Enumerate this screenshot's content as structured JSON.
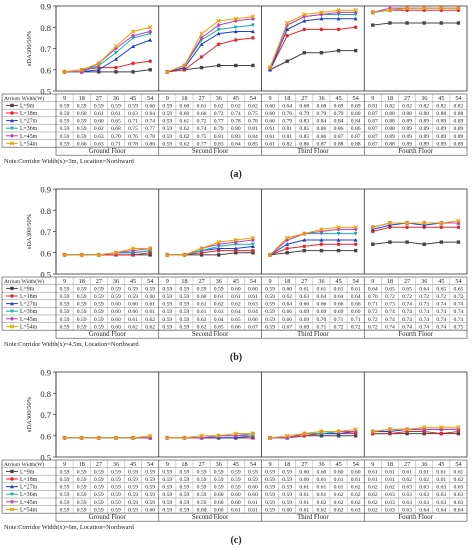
{
  "chart_data": [
    {
      "type": "line",
      "panel_label": "(a)",
      "note": "Note:Corridor Width(x)=3m, Location=Northward",
      "ylabel": "sDA300/50%",
      "ylim": [
        0.5,
        0.9
      ],
      "yticks": [
        "0.5",
        "0.6",
        "0.7",
        "0.8",
        "0.9"
      ],
      "table_header": "Atrium Width(W)",
      "floors": [
        "Ground Floor",
        "Second Floor",
        "Third Floor",
        "Fourth Floor"
      ],
      "x": [
        "9",
        "18",
        "27",
        "36",
        "45",
        "54"
      ],
      "series": [
        {
          "name": "L=9m",
          "color": "#444444",
          "marker": "square",
          "values": [
            [
              0.59,
              0.59,
              0.59,
              0.59,
              0.59,
              0.6
            ],
            [
              0.59,
              0.6,
              0.61,
              0.62,
              0.62,
              0.62
            ],
            [
              0.6,
              0.64,
              0.68,
              0.68,
              0.69,
              0.69
            ],
            [
              0.81,
              0.82,
              0.82,
              0.82,
              0.82,
              0.82
            ]
          ]
        },
        {
          "name": "L=18m",
          "color": "#e8232b",
          "marker": "circle",
          "values": [
            [
              0.59,
              0.6,
              0.61,
              0.61,
              0.63,
              0.64
            ],
            [
              0.59,
              0.6,
              0.66,
              0.72,
              0.74,
              0.75
            ],
            [
              0.6,
              0.76,
              0.79,
              0.79,
              0.79,
              0.8
            ],
            [
              0.87,
              0.88,
              0.88,
              0.88,
              0.88,
              0.88
            ]
          ]
        },
        {
          "name": "L=27m",
          "color": "#2040c8",
          "marker": "triangle",
          "values": [
            [
              0.59,
              0.59,
              0.6,
              0.65,
              0.71,
              0.74
            ],
            [
              0.59,
              0.61,
              0.72,
              0.77,
              0.78,
              0.78
            ],
            [
              0.6,
              0.79,
              0.83,
              0.84,
              0.84,
              0.84
            ],
            [
              0.87,
              0.88,
              0.89,
              0.89,
              0.89,
              0.89
            ]
          ]
        },
        {
          "name": "L=36m",
          "color": "#16b0b0",
          "marker": "tridown",
          "values": [
            [
              0.59,
              0.59,
              0.62,
              0.68,
              0.75,
              0.77
            ],
            [
              0.59,
              0.62,
              0.74,
              0.79,
              0.8,
              0.81
            ],
            [
              0.61,
              0.81,
              0.85,
              0.86,
              0.86,
              0.86
            ],
            [
              0.87,
              0.88,
              0.89,
              0.89,
              0.89,
              0.89
            ]
          ]
        },
        {
          "name": "L=45m",
          "color": "#c43cb8",
          "marker": "diamond",
          "values": [
            [
              0.59,
              0.59,
              0.63,
              0.7,
              0.76,
              0.78
            ],
            [
              0.59,
              0.62,
              0.75,
              0.81,
              0.83,
              0.84
            ],
            [
              0.61,
              0.81,
              0.85,
              0.86,
              0.87,
              0.87
            ],
            [
              0.87,
              0.89,
              0.89,
              0.89,
              0.89,
              0.89
            ]
          ]
        },
        {
          "name": "L=54m",
          "color": "#e8a30a",
          "marker": "cross",
          "values": [
            [
              0.59,
              0.6,
              0.63,
              0.71,
              0.78,
              0.8
            ],
            [
              0.59,
              0.62,
              0.77,
              0.83,
              0.84,
              0.85
            ],
            [
              0.61,
              0.82,
              0.86,
              0.87,
              0.88,
              0.88
            ],
            [
              0.87,
              0.88,
              0.89,
              0.89,
              0.89,
              0.89
            ]
          ]
        }
      ]
    },
    {
      "type": "line",
      "panel_label": "(b)",
      "note": "Note:Corridor Width(x)=4.5m, Location=Northward",
      "ylabel": "sDA300/50%",
      "ylim": [
        0.5,
        0.9
      ],
      "yticks": [
        "0.5",
        "0.6",
        "0.7",
        "0.8",
        "0.9"
      ],
      "table_header": "Atrium Width(W)",
      "floors": [
        "Ground Floor",
        "Second Floor",
        "Third Floor",
        "Fourth Floor"
      ],
      "x": [
        "9",
        "18",
        "27",
        "36",
        "45",
        "54"
      ],
      "series": [
        {
          "name": "L=9m",
          "color": "#444444",
          "marker": "square",
          "values": [
            [
              0.59,
              0.59,
              0.59,
              0.59,
              0.59,
              0.59
            ],
            [
              0.59,
              0.59,
              0.59,
              0.59,
              0.6,
              0.6
            ],
            [
              0.59,
              0.6,
              0.61,
              0.61,
              0.61,
              0.61
            ],
            [
              0.64,
              0.65,
              0.65,
              0.64,
              0.65,
              0.65
            ]
          ]
        },
        {
          "name": "L=18m",
          "color": "#e8232b",
          "marker": "circle",
          "values": [
            [
              0.59,
              0.59,
              0.59,
              0.59,
              0.59,
              0.6
            ],
            [
              0.59,
              0.59,
              0.6,
              0.61,
              0.61,
              0.61
            ],
            [
              0.59,
              0.62,
              0.63,
              0.64,
              0.64,
              0.64
            ],
            [
              0.7,
              0.72,
              0.72,
              0.72,
              0.72,
              0.72
            ]
          ]
        },
        {
          "name": "L=27m",
          "color": "#2040c8",
          "marker": "triangle",
          "values": [
            [
              0.59,
              0.59,
              0.59,
              0.6,
              0.6,
              0.61
            ],
            [
              0.59,
              0.59,
              0.61,
              0.62,
              0.62,
              0.63
            ],
            [
              0.59,
              0.64,
              0.66,
              0.66,
              0.66,
              0.66
            ],
            [
              0.71,
              0.73,
              0.74,
              0.73,
              0.74,
              0.74
            ]
          ]
        },
        {
          "name": "L=36m",
          "color": "#16b0b0",
          "marker": "tridown",
          "values": [
            [
              0.59,
              0.59,
              0.59,
              0.6,
              0.6,
              0.61
            ],
            [
              0.59,
              0.59,
              0.61,
              0.63,
              0.64,
              0.64
            ],
            [
              0.59,
              0.66,
              0.69,
              0.69,
              0.69,
              0.69
            ],
            [
              0.72,
              0.74,
              0.74,
              0.74,
              0.74,
              0.74
            ]
          ]
        },
        {
          "name": "L=45m",
          "color": "#c43cb8",
          "marker": "diamond",
          "values": [
            [
              0.59,
              0.59,
              0.59,
              0.6,
              0.61,
              0.62
            ],
            [
              0.59,
              0.59,
              0.62,
              0.64,
              0.65,
              0.66
            ],
            [
              0.59,
              0.66,
              0.69,
              0.7,
              0.71,
              0.71
            ],
            [
              0.72,
              0.74,
              0.74,
              0.74,
              0.74,
              0.74
            ]
          ]
        },
        {
          "name": "L=54m",
          "color": "#e8a30a",
          "marker": "cross",
          "values": [
            [
              0.59,
              0.59,
              0.59,
              0.6,
              0.62,
              0.62
            ],
            [
              0.59,
              0.59,
              0.62,
              0.65,
              0.66,
              0.67
            ],
            [
              0.59,
              0.67,
              0.69,
              0.71,
              0.72,
              0.72
            ],
            [
              0.72,
              0.74,
              0.74,
              0.74,
              0.74,
              0.75
            ]
          ]
        }
      ]
    },
    {
      "type": "line",
      "panel_label": "(c)",
      "note": "Note:Corridor Width(x)=6m, Location=Northward",
      "ylabel": "sDA300/50%",
      "ylim": [
        0.5,
        0.9
      ],
      "yticks": [
        "0.5",
        "0.6",
        "0.7",
        "0.8",
        "0.9"
      ],
      "table_header": "Atrium Width(W)",
      "floors": [
        "Ground Floor",
        "Second Floor",
        "Third Floor",
        "Fourth Floor"
      ],
      "x": [
        "9",
        "18",
        "27",
        "36",
        "45",
        "54"
      ],
      "series": [
        {
          "name": "L=9m",
          "color": "#444444",
          "marker": "square",
          "values": [
            [
              0.59,
              0.59,
              0.59,
              0.59,
              0.59,
              0.59
            ],
            [
              0.59,
              0.59,
              0.59,
              0.59,
              0.59,
              0.59
            ],
            [
              0.59,
              0.59,
              0.6,
              0.6,
              0.6,
              0.6
            ],
            [
              0.61,
              0.61,
              0.61,
              0.61,
              0.61,
              0.61
            ]
          ]
        },
        {
          "name": "L=18m",
          "color": "#e8232b",
          "marker": "circle",
          "values": [
            [
              0.59,
              0.59,
              0.59,
              0.59,
              0.59,
              0.59
            ],
            [
              0.59,
              0.59,
              0.59,
              0.59,
              0.59,
              0.59
            ],
            [
              0.59,
              0.59,
              0.6,
              0.61,
              0.61,
              0.61
            ],
            [
              0.61,
              0.61,
              0.62,
              0.62,
              0.61,
              0.62
            ]
          ]
        },
        {
          "name": "L=27m",
          "color": "#2040c8",
          "marker": "triangle",
          "values": [
            [
              0.59,
              0.59,
              0.59,
              0.59,
              0.59,
              0.59
            ],
            [
              0.59,
              0.59,
              0.59,
              0.59,
              0.59,
              0.6
            ],
            [
              0.59,
              0.59,
              0.61,
              0.61,
              0.61,
              0.62
            ],
            [
              0.62,
              0.62,
              0.63,
              0.63,
              0.63,
              0.63
            ]
          ]
        },
        {
          "name": "L=36m",
          "color": "#16b0b0",
          "marker": "tridown",
          "values": [
            [
              0.59,
              0.59,
              0.59,
              0.59,
              0.59,
              0.59
            ],
            [
              0.59,
              0.59,
              0.59,
              0.6,
              0.6,
              0.6
            ],
            [
              0.59,
              0.59,
              0.61,
              0.61,
              0.62,
              0.62
            ],
            [
              0.62,
              0.63,
              0.63,
              0.63,
              0.63,
              0.63
            ]
          ]
        },
        {
          "name": "L=45m",
          "color": "#c43cb8",
          "marker": "diamond",
          "values": [
            [
              0.59,
              0.59,
              0.59,
              0.59,
              0.59,
              0.59
            ],
            [
              0.59,
              0.59,
              0.59,
              0.6,
              0.6,
              0.61
            ],
            [
              0.59,
              0.59,
              0.61,
              0.62,
              0.62,
              0.62
            ],
            [
              0.62,
              0.63,
              0.63,
              0.63,
              0.63,
              0.63
            ]
          ]
        },
        {
          "name": "L=54m",
          "color": "#e8a30a",
          "marker": "cross",
          "values": [
            [
              0.59,
              0.59,
              0.59,
              0.59,
              0.59,
              0.6
            ],
            [
              0.59,
              0.59,
              0.6,
              0.6,
              0.61,
              0.61
            ],
            [
              0.59,
              0.6,
              0.61,
              0.62,
              0.62,
              0.63
            ],
            [
              0.62,
              0.63,
              0.63,
              0.64,
              0.64,
              0.64
            ]
          ]
        }
      ]
    }
  ]
}
